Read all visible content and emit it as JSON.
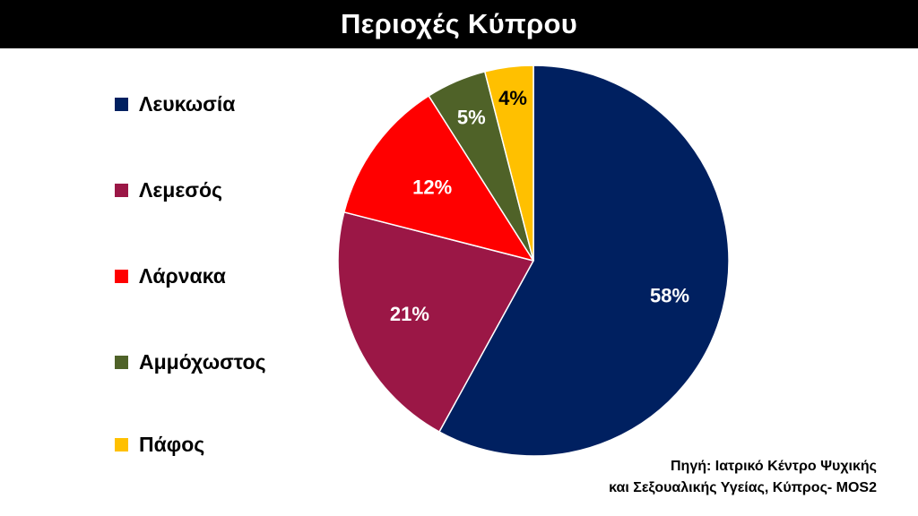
{
  "header": {
    "title": "Περιοχές Κύπρου"
  },
  "chart_data": {
    "type": "pie",
    "title": "Περιοχές Κύπρου",
    "categories": [
      "Λευκωσία",
      "Λεμεσός",
      "Λάρνακα",
      "Αμμόχωστος",
      "Πάφος"
    ],
    "values": [
      58,
      21,
      12,
      5,
      4
    ],
    "labels": [
      "58%",
      "21%",
      "12%",
      "5%",
      "4%"
    ],
    "colors": [
      "#002060",
      "#9B1746",
      "#FF0000",
      "#4F6228",
      "#FFC000"
    ],
    "label_colors": [
      "#ffffff",
      "#ffffff",
      "#ffffff",
      "#ffffff",
      "#000000"
    ],
    "legend_position": "left",
    "start_angle": "top, clockwise"
  },
  "source": {
    "line1": "Πηγή: Ιατρικό Κέντρο Ψυχικής",
    "line2": "και Σεξουαλικής Υγείας, Κύπρος- MOS2"
  }
}
